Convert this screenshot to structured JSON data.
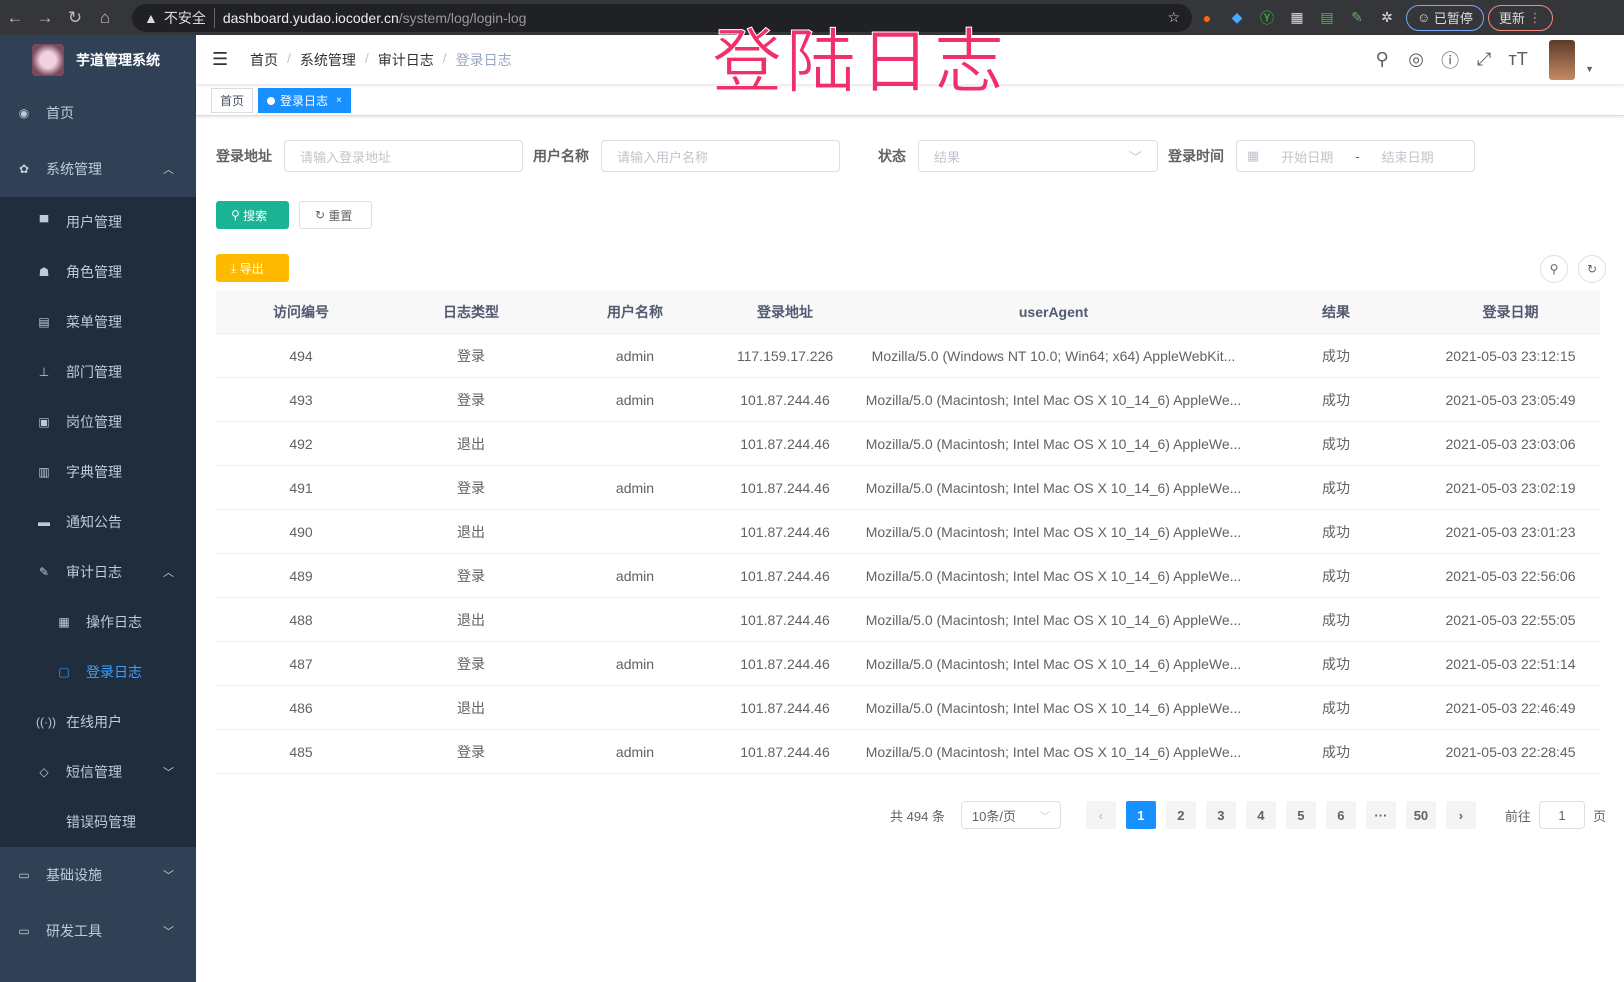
{
  "browser": {
    "not_secure": "不安全",
    "host": "dashboard.yudao.iocoder.cn",
    "path": "/system/log/login-log",
    "paused": "已暂停",
    "update": "更新"
  },
  "overlay_title": "登陆日志",
  "app": {
    "title": "芋道管理系统"
  },
  "sidebar": [
    {
      "label": "首页",
      "icon": "dashboard-icon",
      "glyph": "◉",
      "level": 0
    },
    {
      "label": "系统管理",
      "icon": "gear-icon",
      "glyph": "✿",
      "level": 0,
      "chevron": "︿"
    },
    {
      "label": "用户管理",
      "icon": "user-icon",
      "glyph": "▀",
      "level": 1
    },
    {
      "label": "角色管理",
      "icon": "role-icon",
      "glyph": "☗",
      "level": 1
    },
    {
      "label": "菜单管理",
      "icon": "menu-tree-icon",
      "glyph": "▤",
      "level": 1
    },
    {
      "label": "部门管理",
      "icon": "org-tree-icon",
      "glyph": "⊥",
      "level": 1
    },
    {
      "label": "岗位管理",
      "icon": "post-icon",
      "glyph": "▣",
      "level": 1
    },
    {
      "label": "字典管理",
      "icon": "dictionary-icon",
      "glyph": "▥",
      "level": 1
    },
    {
      "label": "通知公告",
      "icon": "message-icon",
      "glyph": "▬",
      "level": 1
    },
    {
      "label": "审计日志",
      "icon": "edit-icon",
      "glyph": "✎",
      "level": 1,
      "chevron": "︿"
    },
    {
      "label": "操作日志",
      "icon": "form-icon",
      "glyph": "▦",
      "level": 2
    },
    {
      "label": "登录日志",
      "icon": "logininfor-icon",
      "glyph": "▢",
      "level": 2,
      "active": true
    },
    {
      "label": "在线用户",
      "icon": "online-icon",
      "glyph": "((·))",
      "level": 1
    },
    {
      "label": "短信管理",
      "icon": "shield-icon",
      "glyph": "◇",
      "level": 1,
      "chevron": "﹀"
    },
    {
      "label": "错误码管理",
      "icon": "code-icon",
      "glyph": "</>",
      "level": 1
    },
    {
      "label": "基础设施",
      "icon": "monitor-icon",
      "glyph": "▭",
      "level": 0,
      "chevron": "﹀"
    },
    {
      "label": "研发工具",
      "icon": "tool-icon",
      "glyph": "▭",
      "level": 0,
      "chevron": "﹀"
    }
  ],
  "breadcrumb": [
    "首页",
    "系统管理",
    "审计日志",
    "登录日志"
  ],
  "tags": [
    {
      "label": "首页"
    },
    {
      "label": "登录日志",
      "active": true
    }
  ],
  "filters": {
    "addr_label": "登录地址",
    "addr_placeholder": "请输入登录地址",
    "user_label": "用户名称",
    "user_placeholder": "请输入用户名称",
    "status_label": "状态",
    "status_placeholder": "结果",
    "time_label": "登录时间",
    "start_placeholder": "开始日期",
    "end_placeholder": "结束日期",
    "range_sep": "-"
  },
  "buttons": {
    "search": "搜索",
    "reset": "重置",
    "export": "导出"
  },
  "colors": {
    "primary": "#1890ff",
    "search": "#1ab394",
    "export": "#ffba00",
    "sidebar": "#304156"
  },
  "table": {
    "columns": [
      "访问编号",
      "日志类型",
      "用户名称",
      "登录地址",
      "userAgent",
      "结果",
      "登录日期"
    ],
    "rows": [
      [
        "494",
        "登录",
        "admin",
        "117.159.17.226",
        "Mozilla/5.0 (Windows NT 10.0; Win64; x64) AppleWebKit...",
        "成功",
        "2021-05-03 23:12:15"
      ],
      [
        "493",
        "登录",
        "admin",
        "101.87.244.46",
        "Mozilla/5.0 (Macintosh; Intel Mac OS X 10_14_6) AppleWe...",
        "成功",
        "2021-05-03 23:05:49"
      ],
      [
        "492",
        "退出",
        "",
        "101.87.244.46",
        "Mozilla/5.0 (Macintosh; Intel Mac OS X 10_14_6) AppleWe...",
        "成功",
        "2021-05-03 23:03:06"
      ],
      [
        "491",
        "登录",
        "admin",
        "101.87.244.46",
        "Mozilla/5.0 (Macintosh; Intel Mac OS X 10_14_6) AppleWe...",
        "成功",
        "2021-05-03 23:02:19"
      ],
      [
        "490",
        "退出",
        "",
        "101.87.244.46",
        "Mozilla/5.0 (Macintosh; Intel Mac OS X 10_14_6) AppleWe...",
        "成功",
        "2021-05-03 23:01:23"
      ],
      [
        "489",
        "登录",
        "admin",
        "101.87.244.46",
        "Mozilla/5.0 (Macintosh; Intel Mac OS X 10_14_6) AppleWe...",
        "成功",
        "2021-05-03 22:56:06"
      ],
      [
        "488",
        "退出",
        "",
        "101.87.244.46",
        "Mozilla/5.0 (Macintosh; Intel Mac OS X 10_14_6) AppleWe...",
        "成功",
        "2021-05-03 22:55:05"
      ],
      [
        "487",
        "登录",
        "admin",
        "101.87.244.46",
        "Mozilla/5.0 (Macintosh; Intel Mac OS X 10_14_6) AppleWe...",
        "成功",
        "2021-05-03 22:51:14"
      ],
      [
        "486",
        "退出",
        "",
        "101.87.244.46",
        "Mozilla/5.0 (Macintosh; Intel Mac OS X 10_14_6) AppleWe...",
        "成功",
        "2021-05-03 22:46:49"
      ],
      [
        "485",
        "登录",
        "admin",
        "101.87.244.46",
        "Mozilla/5.0 (Macintosh; Intel Mac OS X 10_14_6) AppleWe...",
        "成功",
        "2021-05-03 22:28:45"
      ]
    ]
  },
  "pagination": {
    "total": "共 494 条",
    "page_size": "10条/页",
    "pages": [
      "1",
      "2",
      "3",
      "4",
      "5",
      "6",
      "···",
      "50"
    ],
    "current": "1",
    "goto_label": "前往",
    "goto_value": "1",
    "goto_suffix": "页"
  }
}
